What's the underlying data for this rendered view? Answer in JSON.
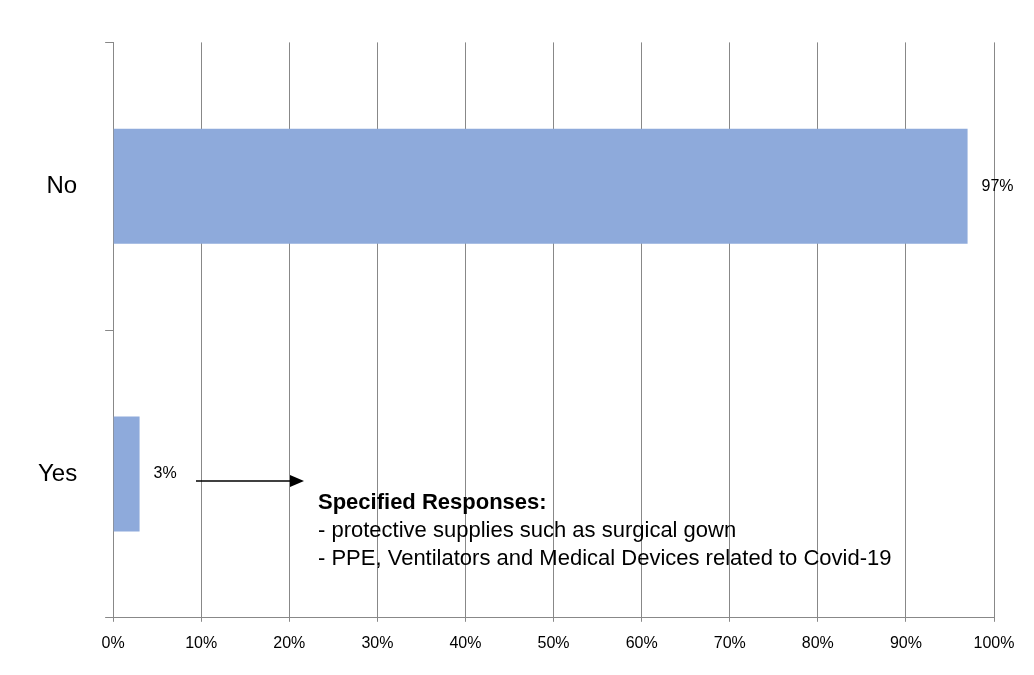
{
  "chart_data": {
    "type": "bar",
    "orientation": "horizontal",
    "categories": [
      "No",
      "Yes"
    ],
    "values": [
      97,
      3
    ],
    "color": "#8eaadb",
    "value_labels": [
      "97%",
      "3%"
    ],
    "xlim": [
      0,
      100
    ],
    "xticks": [
      {
        "value": 0,
        "label": "0%"
      },
      {
        "value": 10,
        "label": "10%"
      },
      {
        "value": 20,
        "label": "20%"
      },
      {
        "value": 30,
        "label": "30%"
      },
      {
        "value": 40,
        "label": "40%"
      },
      {
        "value": 50,
        "label": "50%"
      },
      {
        "value": 60,
        "label": "60%"
      },
      {
        "value": 70,
        "label": "70%"
      },
      {
        "value": 80,
        "label": "80%"
      },
      {
        "value": 90,
        "label": "90%"
      },
      {
        "value": 100,
        "label": "100%"
      }
    ],
    "grid": "x",
    "legend": false,
    "annotations": [
      "Specified Responses:",
      "- protective supplies such as surgical gown",
      "- PPE, Ventilators and Medical Devices related to Covid-19"
    ]
  }
}
